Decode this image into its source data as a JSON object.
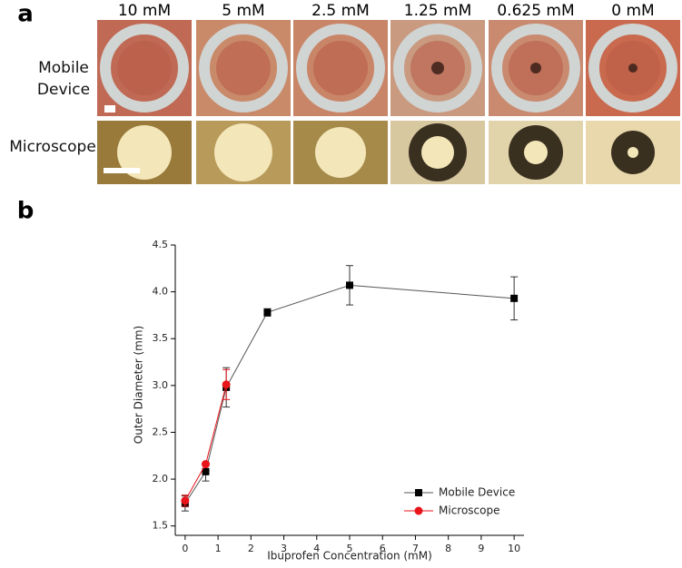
{
  "panel_a": {
    "label": "a",
    "columns": [
      "10 mM",
      "5 mM",
      "2.5 mM",
      "1.25 mM",
      "0.625 mM",
      "0 mM"
    ],
    "rows": [
      "Mobile Device",
      "Microscope"
    ]
  },
  "panel_b_label": "b",
  "chart_data": {
    "type": "line",
    "x_label": "Ibuprofen Concentration (mM)",
    "y_label": "Outer Diameter (mm)",
    "x": [
      0,
      0.625,
      1.25,
      2.5,
      5,
      10
    ],
    "series": [
      {
        "name": "Mobile Device",
        "color": "#000000",
        "marker": "square",
        "line_color": "#555555",
        "values": [
          1.74,
          2.08,
          2.98,
          3.78,
          4.07,
          3.93
        ],
        "errors": [
          0.08,
          0.1,
          0.21,
          0.04,
          0.21,
          0.23
        ]
      },
      {
        "name": "Microscope",
        "color": "#e8141a",
        "marker": "circle",
        "line_color": "#e8141a",
        "values": [
          1.77,
          2.16,
          3.01,
          null,
          null,
          null
        ],
        "errors": [
          0.06,
          0.02,
          0.16,
          null,
          null,
          null
        ]
      }
    ],
    "xlim": [
      -0.3,
      10.3
    ],
    "ylim": [
      1.4,
      4.5
    ],
    "xticks": [
      0,
      1,
      2,
      3,
      4,
      5,
      6,
      7,
      8,
      9,
      10
    ],
    "yticks": [
      1.5,
      {
        "value": 2,
        "label": "2.0"
      },
      2.5,
      {
        "value": 3,
        "label": "3.0"
      },
      3.5,
      {
        "value": 4,
        "label": "4.0"
      },
      4.5
    ],
    "legend": "lower right"
  }
}
